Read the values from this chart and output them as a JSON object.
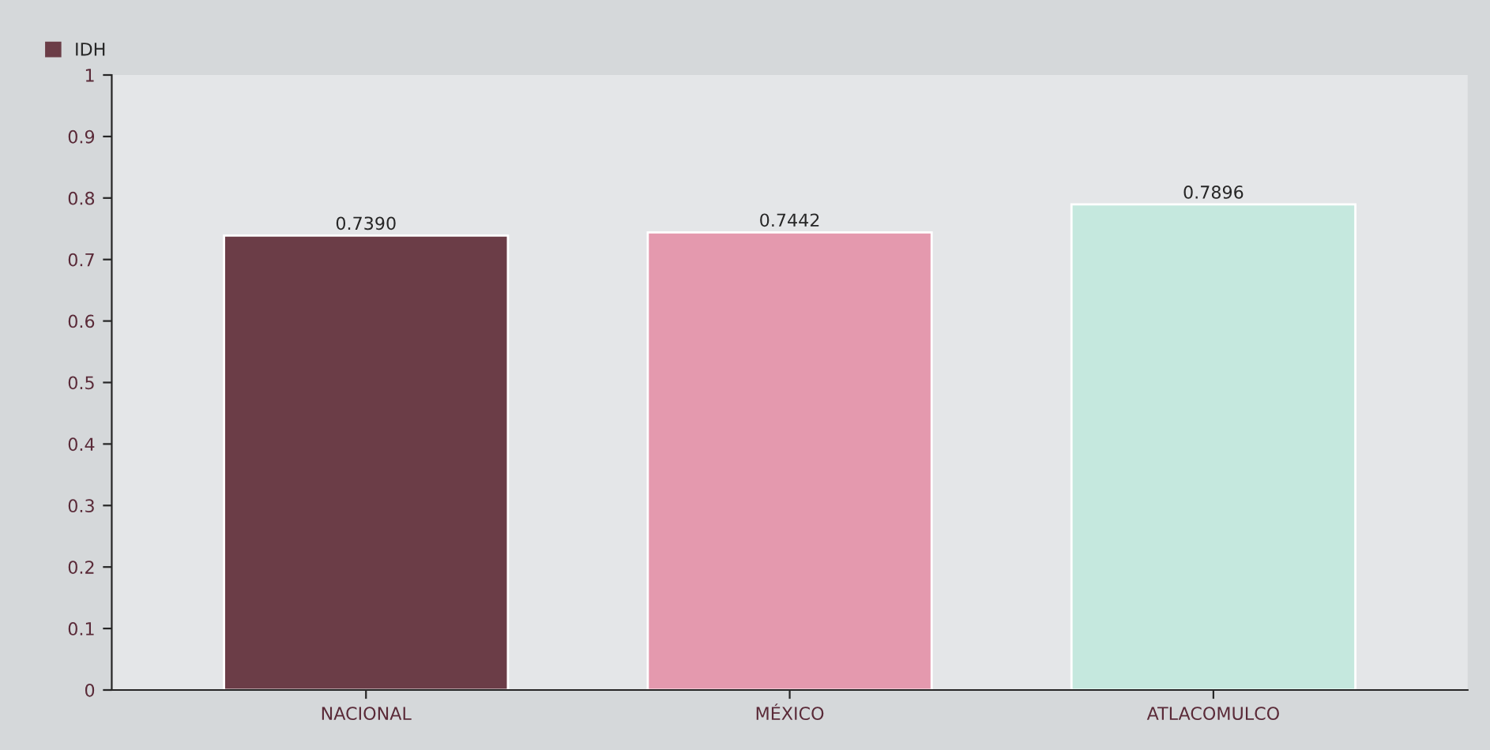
{
  "chart_data": {
    "type": "bar",
    "categories": [
      "NACIONAL",
      "MÉXICO",
      "ATLACOMULCO"
    ],
    "series": [
      {
        "name": "IDH",
        "color": "#6b3d47",
        "colors": [
          "#6b3d47",
          "#e499ae",
          "#c5e8de"
        ],
        "values": [
          0.739,
          0.7442,
          0.7896
        ],
        "value_labels": [
          "0.7390",
          "0.7442",
          "0.7896"
        ]
      }
    ],
    "ylim": [
      0,
      1
    ],
    "yticks": [
      0,
      0.1,
      0.2,
      0.3,
      0.4,
      0.5,
      0.6,
      0.7,
      0.8,
      0.9,
      1
    ],
    "grid": false,
    "legend": "top left"
  }
}
